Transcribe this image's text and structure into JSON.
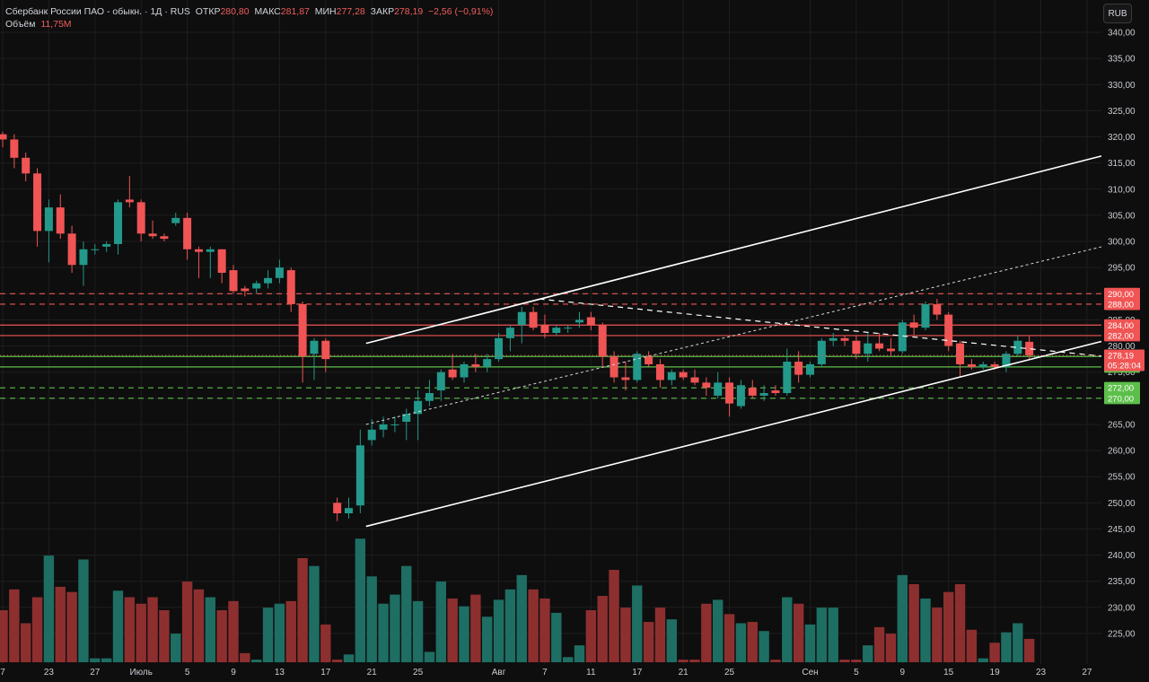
{
  "header": {
    "symbol": "Сбербанк России ПАО - обыкн. · 1Д · RUS",
    "open_label": "ОТКР",
    "open": "280,80",
    "high_label": "МАКС",
    "high": "281,87",
    "low_label": "МИН",
    "low": "277,28",
    "close_label": "ЗАКР",
    "close": "278,19",
    "change": "−2,56 (−0,91%)",
    "volume_label": "Объём",
    "volume": "11,75M"
  },
  "currency_button": "RUB",
  "colors": {
    "up": "#22998a",
    "down": "#f05454",
    "up_vol": "#1e6e63",
    "down_vol": "#8e2f2f",
    "grid": "#1e1e1e",
    "background": "#0e0e0e"
  },
  "chart_data": {
    "type": "candlestick",
    "y_ticks": [
      225,
      230,
      235,
      240,
      245,
      250,
      255,
      260,
      265,
      270,
      275,
      280,
      285,
      290,
      295,
      300,
      305,
      310,
      315,
      320,
      325,
      330,
      335,
      340
    ],
    "y_tick_labels": [
      "225,00",
      "230,00",
      "235,00",
      "240,00",
      "245,00",
      "250,00",
      "255,00",
      "260,00",
      "265,00",
      "270,00",
      "275,00",
      "280,00",
      "285,00",
      "290,00",
      "295,00",
      "300,00",
      "305,00",
      "310,00",
      "315,00",
      "320,00",
      "325,00",
      "330,00",
      "335,00",
      "340,00"
    ],
    "ylim": [
      221,
      342
    ],
    "x_ticks": [
      {
        "label": "7",
        "i": 0
      },
      {
        "label": "23",
        "i": 4
      },
      {
        "label": "27",
        "i": 8
      },
      {
        "label": "Июль",
        "i": 12
      },
      {
        "label": "5",
        "i": 16
      },
      {
        "label": "9",
        "i": 20
      },
      {
        "label": "13",
        "i": 24
      },
      {
        "label": "17",
        "i": 28
      },
      {
        "label": "21",
        "i": 32
      },
      {
        "label": "25",
        "i": 36
      },
      {
        "label": "Авг",
        "i": 43
      },
      {
        "label": "7",
        "i": 47
      },
      {
        "label": "11",
        "i": 51
      },
      {
        "label": "17",
        "i": 55
      },
      {
        "label": "21",
        "i": 59
      },
      {
        "label": "25",
        "i": 63
      },
      {
        "label": "Сен",
        "i": 70
      },
      {
        "label": "5",
        "i": 74
      },
      {
        "label": "9",
        "i": 78
      },
      {
        "label": "15",
        "i": 82
      },
      {
        "label": "19",
        "i": 86
      },
      {
        "label": "23",
        "i": 90
      },
      {
        "label": "27",
        "i": 94
      }
    ],
    "candles": [
      {
        "o": 320.5,
        "h": 321.0,
        "l": 318.0,
        "c": 319.5,
        "v": 0.4
      },
      {
        "o": 319.5,
        "h": 320.5,
        "l": 314.0,
        "c": 316.0,
        "v": 0.56
      },
      {
        "o": 316.0,
        "h": 317.0,
        "l": 311.5,
        "c": 313.0,
        "v": 0.3
      },
      {
        "o": 313.0,
        "h": 314.0,
        "l": 299.0,
        "c": 302.0,
        "v": 0.5
      },
      {
        "o": 302.0,
        "h": 308.0,
        "l": 296.0,
        "c": 306.5,
        "v": 0.82
      },
      {
        "o": 306.5,
        "h": 309.0,
        "l": 300.5,
        "c": 301.5,
        "v": 0.58
      },
      {
        "o": 301.5,
        "h": 303.0,
        "l": 294.0,
        "c": 295.5,
        "v": 0.54
      },
      {
        "o": 295.5,
        "h": 300.0,
        "l": 291.5,
        "c": 298.5,
        "v": 0.79
      },
      {
        "o": 298.5,
        "h": 299.5,
        "l": 297.5,
        "c": 298.5,
        "v": 0.03
      },
      {
        "o": 299.0,
        "h": 300.0,
        "l": 298.0,
        "c": 299.5,
        "v": 0.03
      },
      {
        "o": 299.5,
        "h": 308.0,
        "l": 297.5,
        "c": 307.5,
        "v": 0.55
      },
      {
        "o": 308.0,
        "h": 312.5,
        "l": 306.5,
        "c": 307.5,
        "v": 0.5
      },
      {
        "o": 307.5,
        "h": 308.0,
        "l": 300.0,
        "c": 301.5,
        "v": 0.45
      },
      {
        "o": 301.5,
        "h": 304.0,
        "l": 300.5,
        "c": 301.0,
        "v": 0.5
      },
      {
        "o": 301.0,
        "h": 301.5,
        "l": 300.0,
        "c": 300.5,
        "v": 0.4
      },
      {
        "o": 303.5,
        "h": 305.5,
        "l": 303.0,
        "c": 304.5,
        "v": 0.22
      },
      {
        "o": 304.5,
        "h": 305.5,
        "l": 296.5,
        "c": 298.5,
        "v": 0.62
      },
      {
        "o": 298.5,
        "h": 299.0,
        "l": 293.0,
        "c": 298.0,
        "v": 0.56
      },
      {
        "o": 298.0,
        "h": 299.0,
        "l": 293.0,
        "c": 298.5,
        "v": 0.5
      },
      {
        "o": 298.5,
        "h": 298.5,
        "l": 292.0,
        "c": 294.0,
        "v": 0.4
      },
      {
        "o": 294.5,
        "h": 295.5,
        "l": 290.0,
        "c": 290.5,
        "v": 0.47
      },
      {
        "o": 291.0,
        "h": 291.5,
        "l": 289.5,
        "c": 290.5,
        "v": 0.07
      },
      {
        "o": 291.0,
        "h": 292.5,
        "l": 290.0,
        "c": 292.0,
        "v": 0.02
      },
      {
        "o": 292.0,
        "h": 294.5,
        "l": 291.0,
        "c": 293.0,
        "v": 0.42
      },
      {
        "o": 293.0,
        "h": 296.5,
        "l": 292.0,
        "c": 295.0,
        "v": 0.45
      },
      {
        "o": 294.5,
        "h": 295.0,
        "l": 286.5,
        "c": 288.0,
        "v": 0.47
      },
      {
        "o": 288.0,
        "h": 288.5,
        "l": 273.0,
        "c": 278.0,
        "v": 0.8
      },
      {
        "o": 278.5,
        "h": 281.5,
        "l": 273.5,
        "c": 281.0,
        "v": 0.74
      },
      {
        "o": 281.0,
        "h": 281.5,
        "l": 275.0,
        "c": 277.5,
        "v": 0.29
      },
      {
        "o": 250.0,
        "h": 251.0,
        "l": 246.5,
        "c": 248.0,
        "v": 0.02
      },
      {
        "o": 248.0,
        "h": 251.0,
        "l": 247.0,
        "c": 249.0,
        "v": 0.06
      },
      {
        "o": 249.5,
        "h": 264.0,
        "l": 248.0,
        "c": 261.0,
        "v": 0.95
      },
      {
        "o": 262.0,
        "h": 266.0,
        "l": 261.0,
        "c": 264.0,
        "v": 0.66
      },
      {
        "o": 264.0,
        "h": 266.5,
        "l": 262.5,
        "c": 265.0,
        "v": 0.45
      },
      {
        "o": 265.0,
        "h": 266.5,
        "l": 263.5,
        "c": 265.0,
        "v": 0.52
      },
      {
        "o": 265.5,
        "h": 268.0,
        "l": 262.0,
        "c": 267.0,
        "v": 0.74
      },
      {
        "o": 267.0,
        "h": 271.5,
        "l": 262.0,
        "c": 269.5,
        "v": 0.47
      },
      {
        "o": 269.5,
        "h": 273.5,
        "l": 268.5,
        "c": 271.0,
        "v": 0.08
      },
      {
        "o": 271.5,
        "h": 275.5,
        "l": 269.5,
        "c": 275.0,
        "v": 0.62
      },
      {
        "o": 275.5,
        "h": 278.5,
        "l": 273.5,
        "c": 274.0,
        "v": 0.49
      },
      {
        "o": 274.0,
        "h": 277.0,
        "l": 273.0,
        "c": 276.5,
        "v": 0.43
      },
      {
        "o": 276.5,
        "h": 278.5,
        "l": 275.0,
        "c": 276.0,
        "v": 0.52
      },
      {
        "o": 276.0,
        "h": 278.5,
        "l": 275.0,
        "c": 277.5,
        "v": 0.35
      },
      {
        "o": 277.5,
        "h": 282.5,
        "l": 277.0,
        "c": 281.5,
        "v": 0.48
      },
      {
        "o": 281.5,
        "h": 284.0,
        "l": 279.0,
        "c": 283.5,
        "v": 0.56
      },
      {
        "o": 284.0,
        "h": 287.5,
        "l": 280.5,
        "c": 286.5,
        "v": 0.67
      },
      {
        "o": 286.5,
        "h": 287.5,
        "l": 283.0,
        "c": 283.5,
        "v": 0.56
      },
      {
        "o": 284.0,
        "h": 286.0,
        "l": 281.5,
        "c": 282.5,
        "v": 0.49
      },
      {
        "o": 282.5,
        "h": 284.0,
        "l": 282.0,
        "c": 283.5,
        "v": 0.38
      },
      {
        "o": 283.5,
        "h": 284.0,
        "l": 282.5,
        "c": 283.5,
        "v": 0.04
      },
      {
        "o": 284.5,
        "h": 286.5,
        "l": 283.5,
        "c": 285.0,
        "v": 0.13
      },
      {
        "o": 285.5,
        "h": 286.5,
        "l": 283.0,
        "c": 284.0,
        "v": 0.4
      },
      {
        "o": 284.0,
        "h": 284.5,
        "l": 276.0,
        "c": 278.0,
        "v": 0.51
      },
      {
        "o": 278.0,
        "h": 279.0,
        "l": 273.0,
        "c": 274.0,
        "v": 0.71
      },
      {
        "o": 274.0,
        "h": 277.0,
        "l": 271.5,
        "c": 273.5,
        "v": 0.42
      },
      {
        "o": 273.5,
        "h": 279.0,
        "l": 273.0,
        "c": 278.5,
        "v": 0.59
      },
      {
        "o": 278.0,
        "h": 279.0,
        "l": 276.0,
        "c": 276.5,
        "v": 0.31
      },
      {
        "o": 276.5,
        "h": 277.5,
        "l": 272.0,
        "c": 273.5,
        "v": 0.42
      },
      {
        "o": 273.5,
        "h": 275.5,
        "l": 272.5,
        "c": 275.0,
        "v": 0.33
      },
      {
        "o": 275.0,
        "h": 275.5,
        "l": 273.5,
        "c": 274.0,
        "v": 0.02
      },
      {
        "o": 274.0,
        "h": 275.5,
        "l": 272.5,
        "c": 273.0,
        "v": 0.02
      },
      {
        "o": 273.0,
        "h": 274.0,
        "l": 270.5,
        "c": 272.0,
        "v": 0.45
      },
      {
        "o": 270.5,
        "h": 275.0,
        "l": 270.0,
        "c": 273.0,
        "v": 0.48
      },
      {
        "o": 273.0,
        "h": 274.0,
        "l": 266.5,
        "c": 269.0,
        "v": 0.37
      },
      {
        "o": 268.5,
        "h": 273.5,
        "l": 268.0,
        "c": 272.5,
        "v": 0.3
      },
      {
        "o": 272.0,
        "h": 273.5,
        "l": 270.0,
        "c": 270.5,
        "v": 0.31
      },
      {
        "o": 270.5,
        "h": 272.5,
        "l": 269.5,
        "c": 271.0,
        "v": 0.24
      },
      {
        "o": 271.5,
        "h": 272.5,
        "l": 270.5,
        "c": 271.0,
        "v": 0.02
      },
      {
        "o": 271.0,
        "h": 279.5,
        "l": 270.5,
        "c": 277.0,
        "v": 0.5
      },
      {
        "o": 277.0,
        "h": 279.0,
        "l": 273.0,
        "c": 274.5,
        "v": 0.45
      },
      {
        "o": 274.5,
        "h": 277.0,
        "l": 274.0,
        "c": 276.5,
        "v": 0.29
      },
      {
        "o": 276.5,
        "h": 281.5,
        "l": 276.0,
        "c": 281.0,
        "v": 0.42
      },
      {
        "o": 281.0,
        "h": 282.5,
        "l": 280.0,
        "c": 281.5,
        "v": 0.42
      },
      {
        "o": 281.5,
        "h": 282.0,
        "l": 280.0,
        "c": 281.0,
        "v": 0.02
      },
      {
        "o": 281.0,
        "h": 282.0,
        "l": 277.5,
        "c": 278.5,
        "v": 0.02
      },
      {
        "o": 278.5,
        "h": 282.5,
        "l": 277.0,
        "c": 280.5,
        "v": 0.13
      },
      {
        "o": 280.5,
        "h": 282.5,
        "l": 279.0,
        "c": 279.5,
        "v": 0.27
      },
      {
        "o": 279.5,
        "h": 281.5,
        "l": 278.0,
        "c": 279.0,
        "v": 0.22
      },
      {
        "o": 279.0,
        "h": 285.0,
        "l": 278.5,
        "c": 284.5,
        "v": 0.67
      },
      {
        "o": 284.5,
        "h": 286.0,
        "l": 282.0,
        "c": 283.5,
        "v": 0.6
      },
      {
        "o": 283.5,
        "h": 288.5,
        "l": 283.0,
        "c": 288.0,
        "v": 0.49
      },
      {
        "o": 288.0,
        "h": 289.0,
        "l": 285.0,
        "c": 286.0,
        "v": 0.42
      },
      {
        "o": 286.0,
        "h": 286.5,
        "l": 279.0,
        "c": 280.0,
        "v": 0.54
      },
      {
        "o": 280.5,
        "h": 281.0,
        "l": 274.0,
        "c": 276.5,
        "v": 0.6
      },
      {
        "o": 276.5,
        "h": 277.5,
        "l": 275.5,
        "c": 276.0,
        "v": 0.25
      },
      {
        "o": 276.0,
        "h": 277.0,
        "l": 275.5,
        "c": 276.5,
        "v": 0.03
      },
      {
        "o": 276.5,
        "h": 277.0,
        "l": 275.5,
        "c": 276.0,
        "v": 0.15
      },
      {
        "o": 276.0,
        "h": 279.0,
        "l": 275.0,
        "c": 278.5,
        "v": 0.23
      },
      {
        "o": 278.5,
        "h": 282.0,
        "l": 278.0,
        "c": 281.0,
        "v": 0.3
      },
      {
        "o": 280.8,
        "h": 281.9,
        "l": 277.3,
        "c": 278.2,
        "v": 0.18
      }
    ],
    "horizontal_levels": [
      {
        "price": 290,
        "label": "290,00",
        "style": "dashed",
        "color": "#f05454"
      },
      {
        "price": 288,
        "label": "288,00",
        "style": "dashed",
        "color": "#f05454"
      },
      {
        "price": 284,
        "label": "284,00",
        "style": "solid",
        "color": "#f05454"
      },
      {
        "price": 282,
        "label": "282,00",
        "style": "solid",
        "color": "#f05454"
      },
      {
        "price": 278,
        "label": "278,00",
        "style": "solid",
        "color": "#5cbf4a"
      },
      {
        "price": 276,
        "label": "276,00",
        "style": "solid",
        "color": "#5cbf4a"
      },
      {
        "price": 272,
        "label": "272,00",
        "style": "dashed",
        "color": "#5cbf4a"
      },
      {
        "price": 270,
        "label": "270,00",
        "style": "dashed",
        "color": "#5cbf4a"
      }
    ],
    "trend_lines": [
      {
        "from": [
          31.5,
          280.5
        ],
        "to": [
          100,
          319.0
        ],
        "style": "solid"
      },
      {
        "from": [
          31.5,
          245.5
        ],
        "to": [
          100,
          283.5
        ],
        "style": "solid"
      },
      {
        "from": [
          31.5,
          265.0
        ],
        "to": [
          100,
          301.5
        ],
        "style": "dotted"
      },
      {
        "from": [
          46.5,
          289.0
        ],
        "to": [
          100,
          277.0
        ],
        "style": "dashed"
      }
    ],
    "current_price": {
      "label": "278,19",
      "countdown": "05:28:04",
      "color": "#f05454"
    }
  }
}
